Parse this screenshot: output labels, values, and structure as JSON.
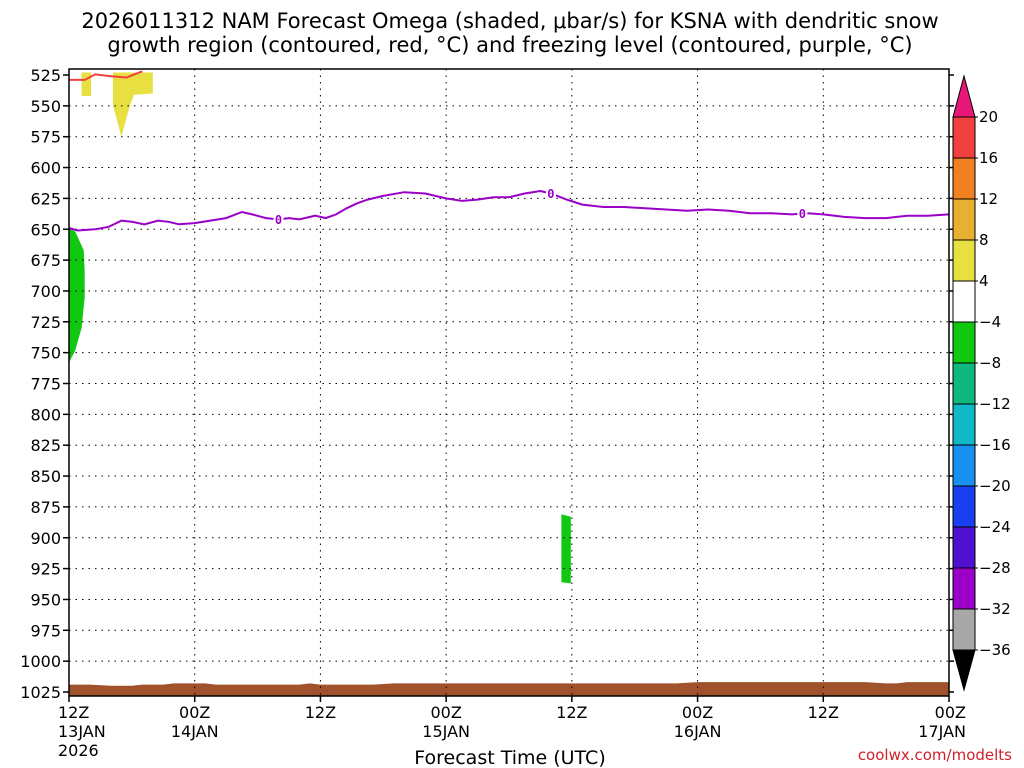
{
  "chart_data": {
    "type": "area",
    "title_line1": "2026011312 NAM Forecast Omega (shaded, μbar/s) for KSNA with dendritic snow",
    "title_line2": "growth region (contoured, red, °C) and freezing level (contoured, purple, °C)",
    "xlabel": "Forecast Time (UTC)",
    "credit": "coolwx.com/modelts",
    "x_range_hours": [
      0,
      84
    ],
    "x_ticks": [
      {
        "hour": 0,
        "label": "12Z",
        "date": "13JAN",
        "year": "2026"
      },
      {
        "hour": 12,
        "label": "00Z",
        "date": "14JAN",
        "year": ""
      },
      {
        "hour": 24,
        "label": "12Z",
        "date": "",
        "year": ""
      },
      {
        "hour": 36,
        "label": "00Z",
        "date": "15JAN",
        "year": ""
      },
      {
        "hour": 48,
        "label": "12Z",
        "date": "",
        "year": ""
      },
      {
        "hour": 60,
        "label": "00Z",
        "date": "16JAN",
        "year": ""
      },
      {
        "hour": 72,
        "label": "12Z",
        "date": "",
        "year": ""
      },
      {
        "hour": 84,
        "label": "00Z",
        "date": "17JAN",
        "year": ""
      }
    ],
    "y_range_mb": [
      525,
      1025
    ],
    "y_ticks": [
      525,
      550,
      575,
      600,
      625,
      650,
      675,
      700,
      725,
      750,
      775,
      800,
      825,
      850,
      875,
      900,
      925,
      950,
      975,
      1000,
      1025
    ],
    "grid": true,
    "colorbar": {
      "label_values": [
        "20",
        "16",
        "12",
        "8",
        "4",
        "−4",
        "−8",
        "−12",
        "−16",
        "−20",
        "−24",
        "−28",
        "−32",
        "−36"
      ],
      "colors_top_to_bottom": [
        "#e8187a",
        "#f04040",
        "#f08020",
        "#e8b030",
        "#e8e040",
        "#ffffff",
        "#10c810",
        "#10b880",
        "#10b8c8",
        "#1890f0",
        "#1840f0",
        "#5010d0",
        "#9a00c8",
        "#a8a8a8",
        "#000000"
      ]
    },
    "freezing_level": {
      "color": "#9a00c8",
      "label": "0",
      "points": [
        [
          0,
          649
        ],
        [
          0.8,
          651
        ],
        [
          2.5,
          650
        ],
        [
          3.8,
          648
        ],
        [
          5,
          643
        ],
        [
          6,
          644
        ],
        [
          7.2,
          646
        ],
        [
          8.5,
          643
        ],
        [
          9.5,
          644
        ],
        [
          10.5,
          646
        ],
        [
          12,
          645
        ],
        [
          13.5,
          643
        ],
        [
          15,
          641
        ],
        [
          16.5,
          636
        ],
        [
          17.5,
          638
        ],
        [
          18.8,
          641
        ],
        [
          20,
          642
        ],
        [
          21,
          641
        ],
        [
          22,
          642
        ],
        [
          23.5,
          639
        ],
        [
          24.5,
          641
        ],
        [
          25.5,
          638
        ],
        [
          26.5,
          633
        ],
        [
          27.5,
          629
        ],
        [
          28.5,
          626
        ],
        [
          30,
          623
        ],
        [
          32,
          620
        ],
        [
          34,
          621
        ],
        [
          36,
          625
        ],
        [
          37.5,
          627
        ],
        [
          39,
          626
        ],
        [
          40.5,
          624
        ],
        [
          42,
          624
        ],
        [
          43.5,
          621
        ],
        [
          45,
          619
        ],
        [
          46,
          621
        ],
        [
          47.5,
          626
        ],
        [
          49,
          630
        ],
        [
          51,
          632
        ],
        [
          53,
          632
        ],
        [
          55,
          633
        ],
        [
          57,
          634
        ],
        [
          59,
          635
        ],
        [
          61,
          634
        ],
        [
          63,
          635
        ],
        [
          65,
          637
        ],
        [
          67,
          637
        ],
        [
          69,
          638
        ],
        [
          70.5,
          637
        ],
        [
          72,
          638
        ],
        [
          74,
          640
        ],
        [
          76,
          641
        ],
        [
          78,
          641
        ],
        [
          80,
          639
        ],
        [
          82,
          639
        ],
        [
          84,
          638
        ]
      ]
    },
    "dgz_boundary": {
      "color": "#f04040",
      "points": [
        [
          0,
          529
        ],
        [
          1.5,
          529
        ],
        [
          2.5,
          524.5
        ],
        [
          4,
          526
        ],
        [
          5.5,
          527
        ],
        [
          7,
          522
        ]
      ]
    },
    "omega_areas": [
      {
        "name": "positive-4-8",
        "color": "#e8e040",
        "polygon": [
          [
            1.2,
            523
          ],
          [
            1.2,
            542
          ],
          [
            2.1,
            542
          ],
          [
            2.1,
            523
          ]
        ]
      },
      {
        "name": "positive-4-8",
        "color": "#e8e040",
        "polygon": [
          [
            4.2,
            523
          ],
          [
            4.2,
            550
          ],
          [
            5,
            575
          ],
          [
            5.8,
            550
          ],
          [
            6.2,
            541
          ],
          [
            8,
            540
          ],
          [
            8,
            523
          ]
        ]
      },
      {
        "name": "negative-4-8",
        "color": "#10c810",
        "polygon": [
          [
            0,
            648
          ],
          [
            0.6,
            652
          ],
          [
            1.4,
            667
          ],
          [
            1.5,
            685
          ],
          [
            1.5,
            705
          ],
          [
            1.2,
            730
          ],
          [
            0.6,
            748
          ],
          [
            0,
            758
          ]
        ]
      },
      {
        "name": "negative-4-8",
        "color": "#10c810",
        "polygon": [
          [
            47,
            881
          ],
          [
            47,
            936
          ],
          [
            47.9,
            937
          ],
          [
            47.9,
            883
          ]
        ]
      }
    ],
    "terrain": {
      "color": "#a0522d",
      "points": [
        [
          0,
          1019
        ],
        [
          2,
          1019
        ],
        [
          4,
          1020
        ],
        [
          6,
          1020
        ],
        [
          7,
          1019
        ],
        [
          9,
          1019
        ],
        [
          10,
          1018
        ],
        [
          13,
          1018
        ],
        [
          14,
          1019
        ],
        [
          16,
          1019
        ],
        [
          22,
          1019
        ],
        [
          23,
          1018
        ],
        [
          24,
          1019
        ],
        [
          29,
          1019
        ],
        [
          31,
          1018
        ],
        [
          58,
          1018
        ],
        [
          60,
          1017
        ],
        [
          76,
          1017
        ],
        [
          78,
          1018
        ],
        [
          79,
          1018
        ],
        [
          80,
          1017
        ],
        [
          84,
          1017
        ]
      ]
    }
  }
}
